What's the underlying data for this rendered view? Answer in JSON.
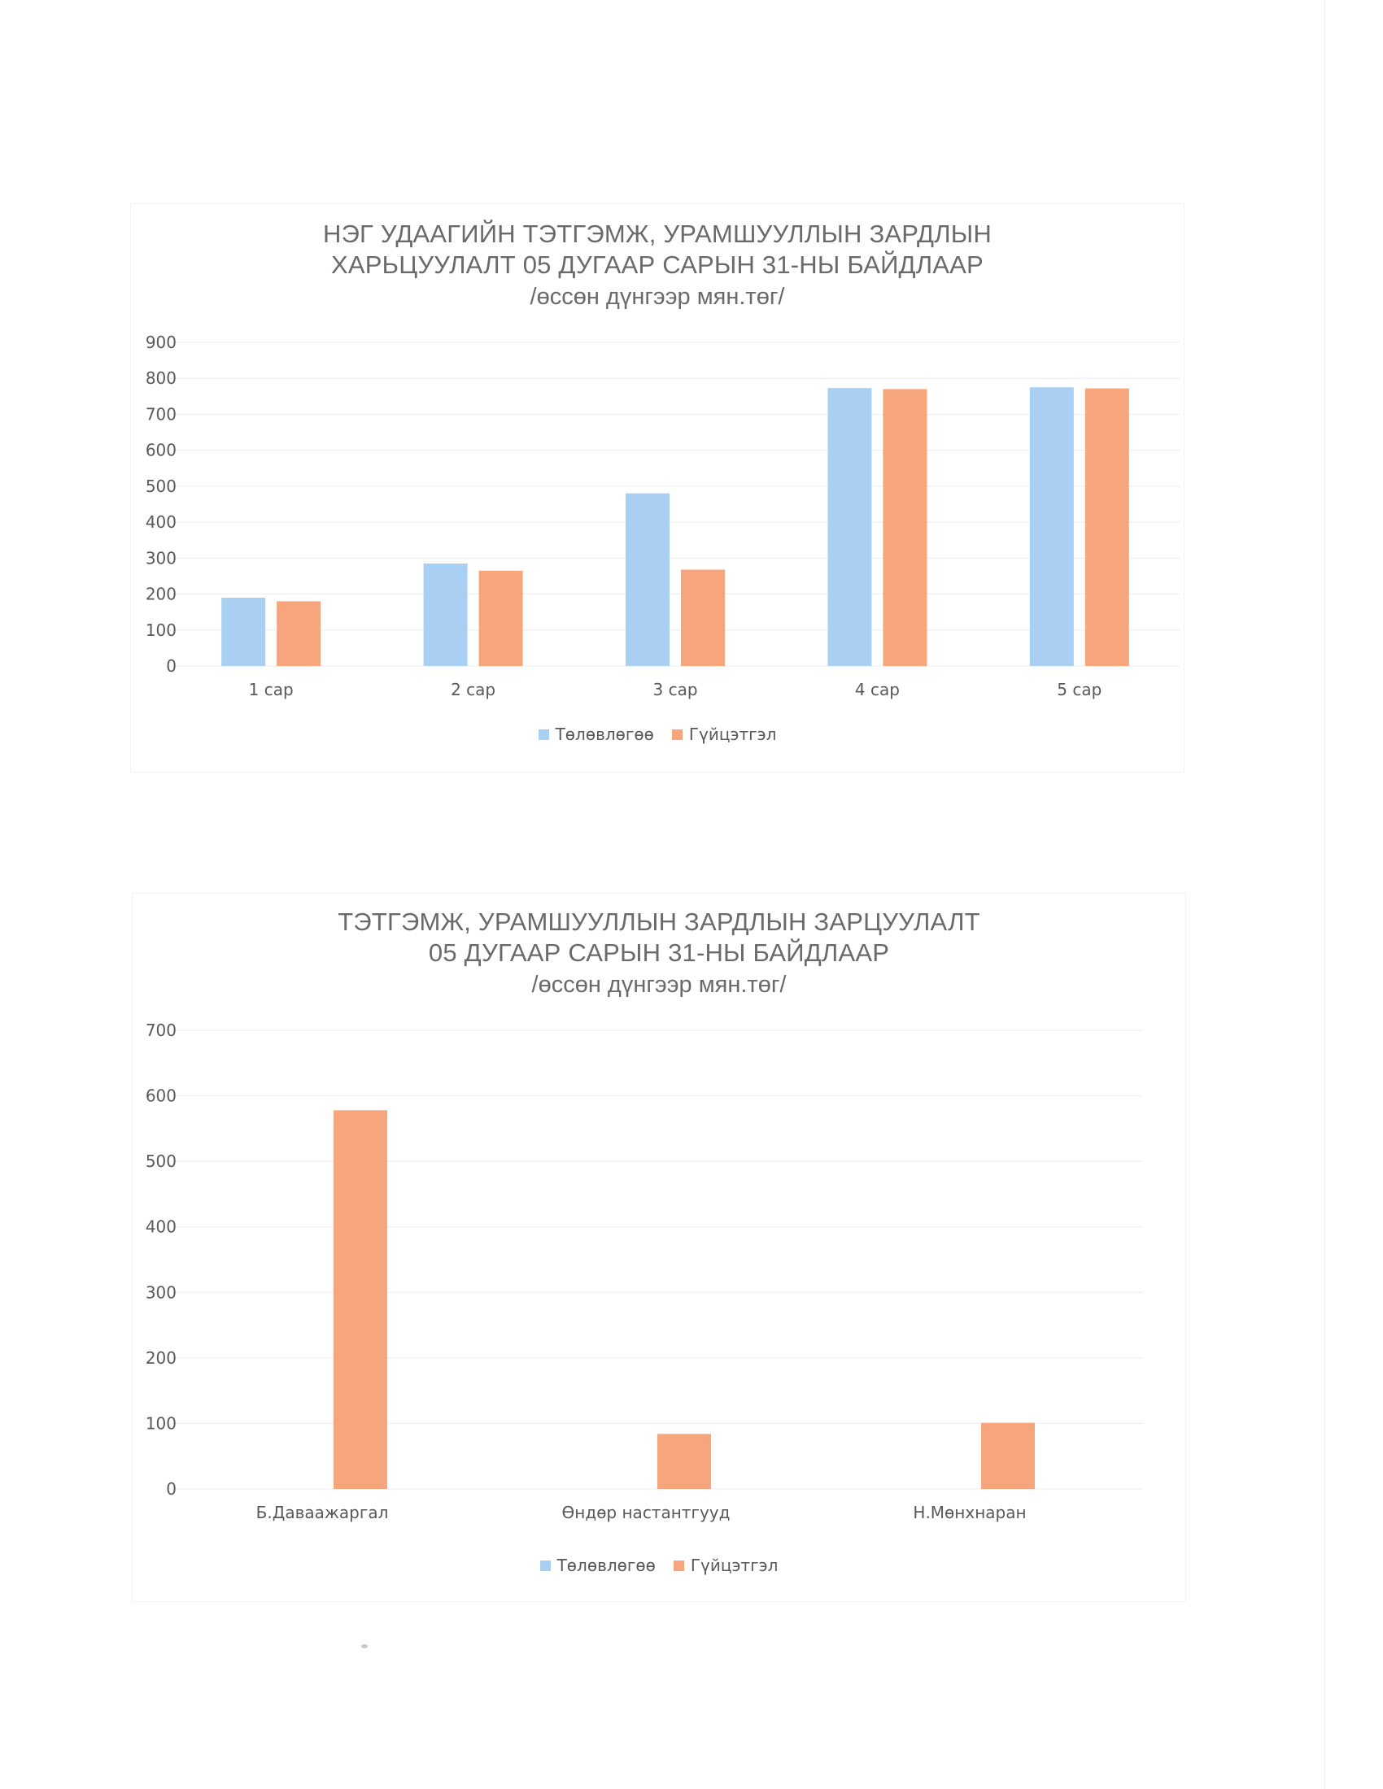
{
  "charts": [
    {
      "title_lines": [
        "НЭГ УДААГИЙН ТЭТГЭМЖ, УРАМШУУЛЛЫН ЗАРДЛЫН",
        "ХАРЬЦУУЛАЛТ 05 ДУГААР САРЫН 31-НЫ БАЙДЛААР"
      ],
      "subtitle": "/өссөн дүнгээр мян.төг/"
    },
    {
      "title_lines": [
        "ТЭТГЭМЖ, УРАМШУУЛЛЫН ЗАРДЛЫН ЗАРЦУУЛАЛТ",
        "05 ДУГААР САРЫН 31-НЫ БАЙДЛААР"
      ],
      "subtitle": "/өссөн дүнгээр мян.төг/"
    }
  ],
  "legend": {
    "plan_label": "Төлөвлөгөө",
    "actual_label": "Гүйцэтгэл"
  },
  "colors": {
    "plan": "#a9cff2",
    "actual": "#f7a57c",
    "text": "#595959",
    "title": "#6a6a6a",
    "grid": "#eeeeee"
  },
  "chart_data": [
    {
      "type": "bar",
      "title": "НЭГ УДААГИЙН ТЭТГЭМЖ, УРАМШУУЛЛЫН ЗАРДЛЫН ХАРЬЦУУЛАЛТ 05 ДУГААР САРЫН 31-НЫ БАЙДЛААР",
      "subtitle": "/өссөн дүнгээр мян.төг/",
      "categories": [
        "1 сар",
        "2 сар",
        "3 сар",
        "4 сар",
        "5 сар"
      ],
      "series": [
        {
          "name": "Төлөвлөгөө",
          "values": [
            190,
            285,
            480,
            773,
            775
          ]
        },
        {
          "name": "Гүйцэтгэл",
          "values": [
            180,
            265,
            268,
            770,
            772
          ]
        }
      ],
      "yticks": [
        0,
        100,
        200,
        300,
        400,
        500,
        600,
        700,
        800,
        900
      ],
      "ylim": [
        0,
        900
      ],
      "xlabel": "",
      "ylabel": "",
      "grid": true,
      "legend_position": "bottom"
    },
    {
      "type": "bar",
      "title": "ТЭТГЭМЖ, УРАМШУУЛЛЫН ЗАРДЛЫН ЗАРЦУУЛАЛТ 05 ДУГААР САРЫН 31-НЫ БАЙДЛААР",
      "subtitle": "/өссөн дүнгээр мян.төг/",
      "categories": [
        "Б.Даваажаргал",
        "Өндөр настантгууд",
        "Н.Мөнхнаран"
      ],
      "series": [
        {
          "name": "Төлөвлөгөө",
          "values": [
            0,
            0,
            0
          ]
        },
        {
          "name": "Гүйцэтгэл",
          "values": [
            578,
            84,
            101
          ]
        }
      ],
      "yticks": [
        0,
        100,
        200,
        300,
        400,
        500,
        600,
        700
      ],
      "ylim": [
        0,
        700
      ],
      "xlabel": "",
      "ylabel": "",
      "grid": true,
      "legend_position": "bottom"
    }
  ]
}
